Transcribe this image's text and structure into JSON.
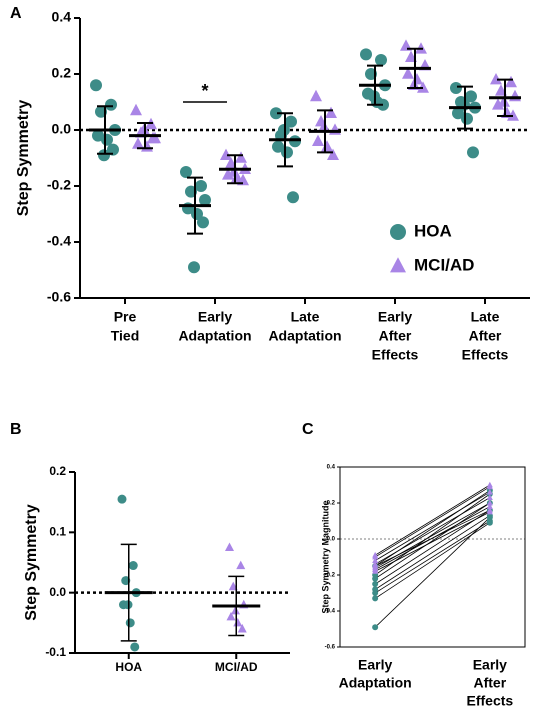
{
  "chart_data": [
    {
      "type": "dot",
      "title": "A",
      "y_label": "Step Symmetry",
      "categories": [
        [
          "Pre",
          "Tied"
        ],
        [
          "Early",
          "Adaptation"
        ],
        [
          "Late",
          "Adaptation"
        ],
        [
          "Early",
          "After",
          "Effects"
        ],
        [
          "Late",
          "After",
          "Effects"
        ]
      ],
      "ylim": [
        -0.6,
        0.4
      ],
      "yticks": [
        -0.6,
        -0.4,
        -0.2,
        {
          "value": 0,
          "label": "0.0"
        },
        0.2,
        0.4
      ],
      "annotations": [
        "*"
      ],
      "series": [
        {
          "name": "HOA",
          "color": "#3d8c88",
          "marker": "circle",
          "values": [
            [
              0.16,
              0.09,
              0.065,
              0.0,
              -0.02,
              -0.035,
              -0.07,
              -0.09
            ],
            [
              -0.15,
              -0.2,
              -0.22,
              -0.25,
              -0.28,
              -0.3,
              -0.33,
              -0.49
            ],
            [
              0.06,
              0.03,
              -0.02,
              -0.04,
              -0.06,
              -0.08,
              -0.24,
              0.0
            ],
            [
              0.27,
              0.25,
              0.2,
              0.16,
              0.13,
              0.1,
              0.09,
              0.12
            ],
            [
              0.15,
              0.12,
              0.1,
              0.08,
              0.06,
              0.04,
              -0.08,
              0.09
            ]
          ],
          "mean": [
            0.0,
            -0.27,
            -0.035,
            0.16,
            0.08
          ],
          "sd": [
            0.085,
            0.1,
            0.095,
            0.07,
            0.075
          ]
        },
        {
          "name": "MCI/AD",
          "color": "#a985e6",
          "marker": "triangle",
          "values": [
            [
              0.07,
              0.02,
              -0.01,
              -0.03,
              -0.05,
              -0.06,
              -0.03,
              0.0
            ],
            [
              -0.09,
              -0.1,
              -0.12,
              -0.14,
              -0.16,
              -0.17,
              -0.18,
              -0.15
            ],
            [
              0.12,
              0.06,
              0.03,
              0.0,
              -0.04,
              -0.06,
              -0.09,
              0.01
            ],
            [
              0.3,
              0.29,
              0.26,
              0.23,
              0.2,
              0.18,
              0.15,
              0.16
            ],
            [
              0.18,
              0.17,
              0.14,
              0.12,
              0.09,
              0.06,
              0.05,
              0.1
            ]
          ],
          "mean": [
            -0.02,
            -0.14,
            -0.005,
            0.22,
            0.115
          ],
          "sd": [
            0.045,
            0.05,
            0.075,
            0.07,
            0.065
          ]
        }
      ]
    },
    {
      "type": "dot",
      "title": "B",
      "y_label": "Step Symmetry",
      "categories": [
        [
          "HOA"
        ],
        [
          "MCI/AD"
        ]
      ],
      "ylim": [
        -0.1,
        0.2
      ],
      "yticks": [
        -0.1,
        {
          "value": 0,
          "label": "0.0"
        },
        0.1,
        0.2
      ],
      "colors": [
        "#3d8c88",
        "#a985e6"
      ],
      "markers": [
        "circle",
        "triangle"
      ],
      "values": [
        [
          0.155,
          0.045,
          0.02,
          0.0,
          -0.02,
          -0.05,
          -0.09,
          -0.02
        ],
        [
          0.075,
          0.045,
          0.01,
          -0.02,
          -0.04,
          -0.05,
          -0.06,
          -0.03
        ]
      ],
      "mean": [
        0.0,
        -0.022
      ],
      "sd": [
        0.08,
        0.049
      ]
    },
    {
      "type": "paired",
      "title": "C",
      "y_label": "Step Symmetry Magnitude",
      "categories": [
        [
          "Early",
          "Adaptation"
        ],
        [
          "Early",
          "After",
          "Effects"
        ]
      ],
      "ylim": [
        -0.6,
        0.4
      ],
      "yticks": [
        -0.6,
        -0.4,
        -0.2,
        {
          "value": 0,
          "label": "0.0"
        },
        0.2,
        0.4
      ],
      "series": [
        {
          "color": "#3d8c88",
          "marker": "circle",
          "pairs": [
            [
              -0.15,
              0.27
            ],
            [
              -0.2,
              0.25
            ],
            [
              -0.22,
              0.2
            ],
            [
              -0.25,
              0.16
            ],
            [
              -0.28,
              0.13
            ],
            [
              -0.3,
              0.1
            ],
            [
              -0.33,
              0.09
            ],
            [
              -0.49,
              0.12
            ]
          ]
        },
        {
          "color": "#a985e6",
          "marker": "triangle",
          "pairs": [
            [
              -0.09,
              0.3
            ],
            [
              -0.1,
              0.29
            ],
            [
              -0.12,
              0.26
            ],
            [
              -0.14,
              0.23
            ],
            [
              -0.16,
              0.2
            ],
            [
              -0.17,
              0.18
            ],
            [
              -0.18,
              0.15
            ],
            [
              -0.15,
              0.16
            ]
          ]
        }
      ]
    }
  ]
}
